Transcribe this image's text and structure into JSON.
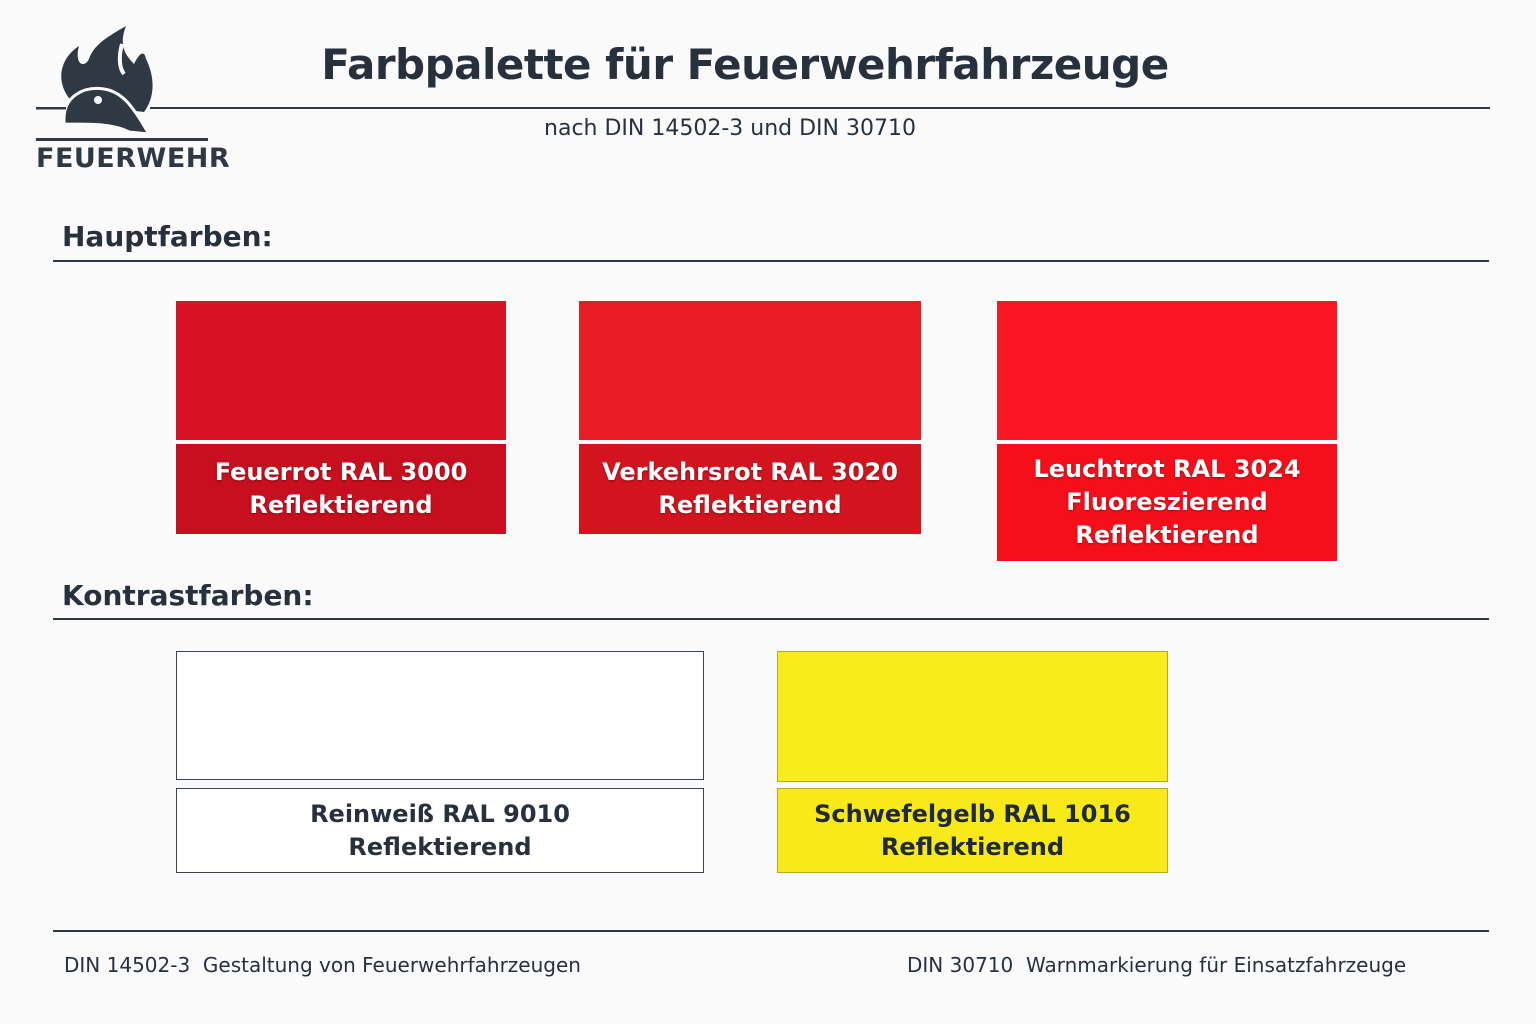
{
  "header": {
    "logo_text": "FEUERWEHR",
    "title": "Farbpalette für Feuerwehrfahrzeuge",
    "subtitle": "nach DIN 14502-3 und DIN 30710"
  },
  "sections": {
    "main": {
      "heading": "Hauptfarben:",
      "swatches": [
        {
          "line1": "Feuerrot RAL 3000",
          "line2": "Reflektierend",
          "line3": "",
          "color": "#d91323",
          "label_color": "#c70f1f"
        },
        {
          "line1": "Verkehrsrot RAL 3020",
          "line2": "Reflektierend",
          "line3": "",
          "color": "#e81c25",
          "label_color": "#d2141f"
        },
        {
          "line1": "Leuchtrot RAL 3024",
          "line2": "Fluoreszierend",
          "line3": "Reflektierend",
          "color": "#fb1725",
          "label_color": "#f50f1b"
        }
      ]
    },
    "contrast": {
      "heading": "Kontrastfarben:",
      "swatches": [
        {
          "line1": "Reinweiß RAL 9010",
          "line2": "Reflektierend",
          "color": "#ffffff"
        },
        {
          "line1": "Schwefelgelb RAL 1016",
          "line2": "Reflektierend",
          "color": "#f9ec1c"
        }
      ]
    }
  },
  "footer": {
    "left": "DIN 14502-3  Gestaltung von Feuerwehrfahrzeugen",
    "right": "DIN 30710  Warnmarkierung für Einsatzfahrzeuge"
  }
}
